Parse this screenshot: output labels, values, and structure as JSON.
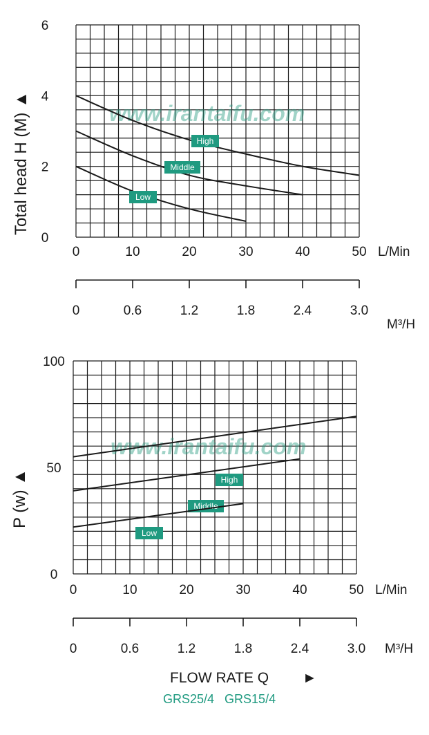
{
  "watermark": "www.irantaifu.com",
  "colors": {
    "accent": "#1f9a80",
    "line": "#1a1a1a",
    "badge": "#1f9a80"
  },
  "footer": {
    "flow_label": "FLOW RATE Q",
    "arrow": "►",
    "models": "GRS25/4   GRS15/4"
  },
  "chart_data": [
    {
      "type": "line",
      "ylabel": "Total head H",
      "ylabel_unit": "(M)",
      "ylabel_arrow": "▲",
      "xlabel": "L/Min",
      "xlim": [
        0,
        50
      ],
      "ylim": [
        0,
        6
      ],
      "x_ticks": [
        "0",
        "10",
        "20",
        "30",
        "40",
        "50"
      ],
      "y_ticks": [
        "0",
        "2",
        "4",
        "6"
      ],
      "secondary_x_ticks": [
        "0",
        "0.6",
        "1.2",
        "1.8",
        "2.4",
        "3.0"
      ],
      "secondary_xlabel": "M³/H",
      "grid": true,
      "series": [
        {
          "name": "High",
          "x": [
            0,
            10,
            20,
            30,
            40,
            50
          ],
          "y": [
            4.0,
            3.3,
            2.75,
            2.35,
            2.0,
            1.75
          ]
        },
        {
          "name": "Middle",
          "x": [
            0,
            10,
            20,
            30,
            40
          ],
          "y": [
            3.0,
            2.3,
            1.75,
            1.45,
            1.2
          ]
        },
        {
          "name": "Low",
          "x": [
            0,
            10,
            20,
            30
          ],
          "y": [
            2.0,
            1.3,
            0.8,
            0.45
          ]
        }
      ]
    },
    {
      "type": "line",
      "ylabel": "P",
      "ylabel_unit": "(w)",
      "ylabel_arrow": "▲",
      "xlabel": "L/Min",
      "xlim": [
        0,
        50
      ],
      "ylim": [
        0,
        100
      ],
      "x_ticks": [
        "0",
        "10",
        "20",
        "30",
        "40",
        "50"
      ],
      "y_ticks": [
        "0",
        "50",
        "100"
      ],
      "secondary_x_ticks": [
        "0",
        "0.6",
        "1.2",
        "1.8",
        "2.4",
        "3.0"
      ],
      "secondary_xlabel": "M³/H",
      "grid": true,
      "series": [
        {
          "name": "High",
          "x": [
            0,
            50
          ],
          "y": [
            55,
            74
          ]
        },
        {
          "name": "Middle",
          "x": [
            0,
            40
          ],
          "y": [
            39,
            54
          ]
        },
        {
          "name": "Low",
          "x": [
            0,
            30
          ],
          "y": [
            22,
            33
          ]
        }
      ]
    }
  ]
}
